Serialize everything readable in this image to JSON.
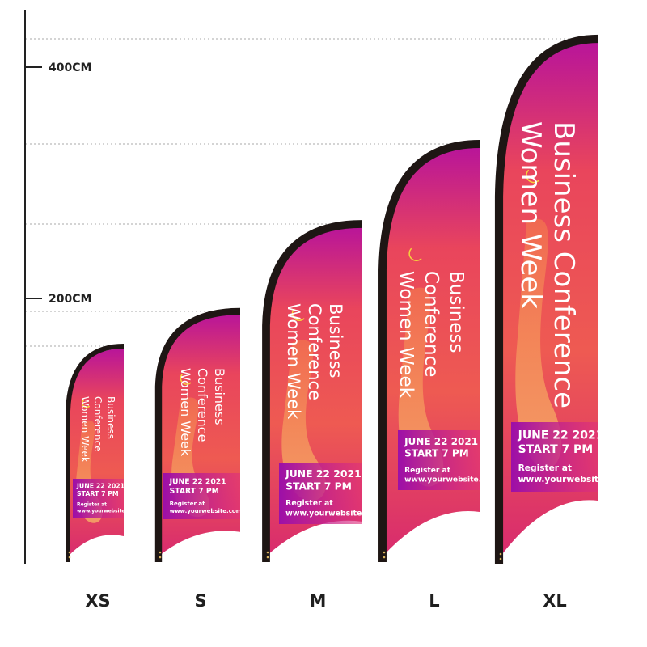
{
  "scale": {
    "ticks": [
      {
        "label": "400CM"
      },
      {
        "label": "200CM"
      }
    ]
  },
  "flag_text": {
    "title_line1": "Business Conference",
    "title_line2": "Women Week",
    "title_small": [
      "Business",
      "Conference",
      "Women Week"
    ],
    "date": "JUNE 22 2021",
    "start": "START 7 PM",
    "register": "Register at",
    "website": "www.yourwebsite.com"
  },
  "flags": [
    {
      "size": "XS"
    },
    {
      "size": "S"
    },
    {
      "size": "M"
    },
    {
      "size": "L"
    },
    {
      "size": "XL"
    }
  ],
  "colors": {
    "pole": "#1e1614",
    "magenta": "#c2168f",
    "orange": "#f0604a",
    "peach": "#f6a560",
    "purple": "#9a12a6"
  }
}
